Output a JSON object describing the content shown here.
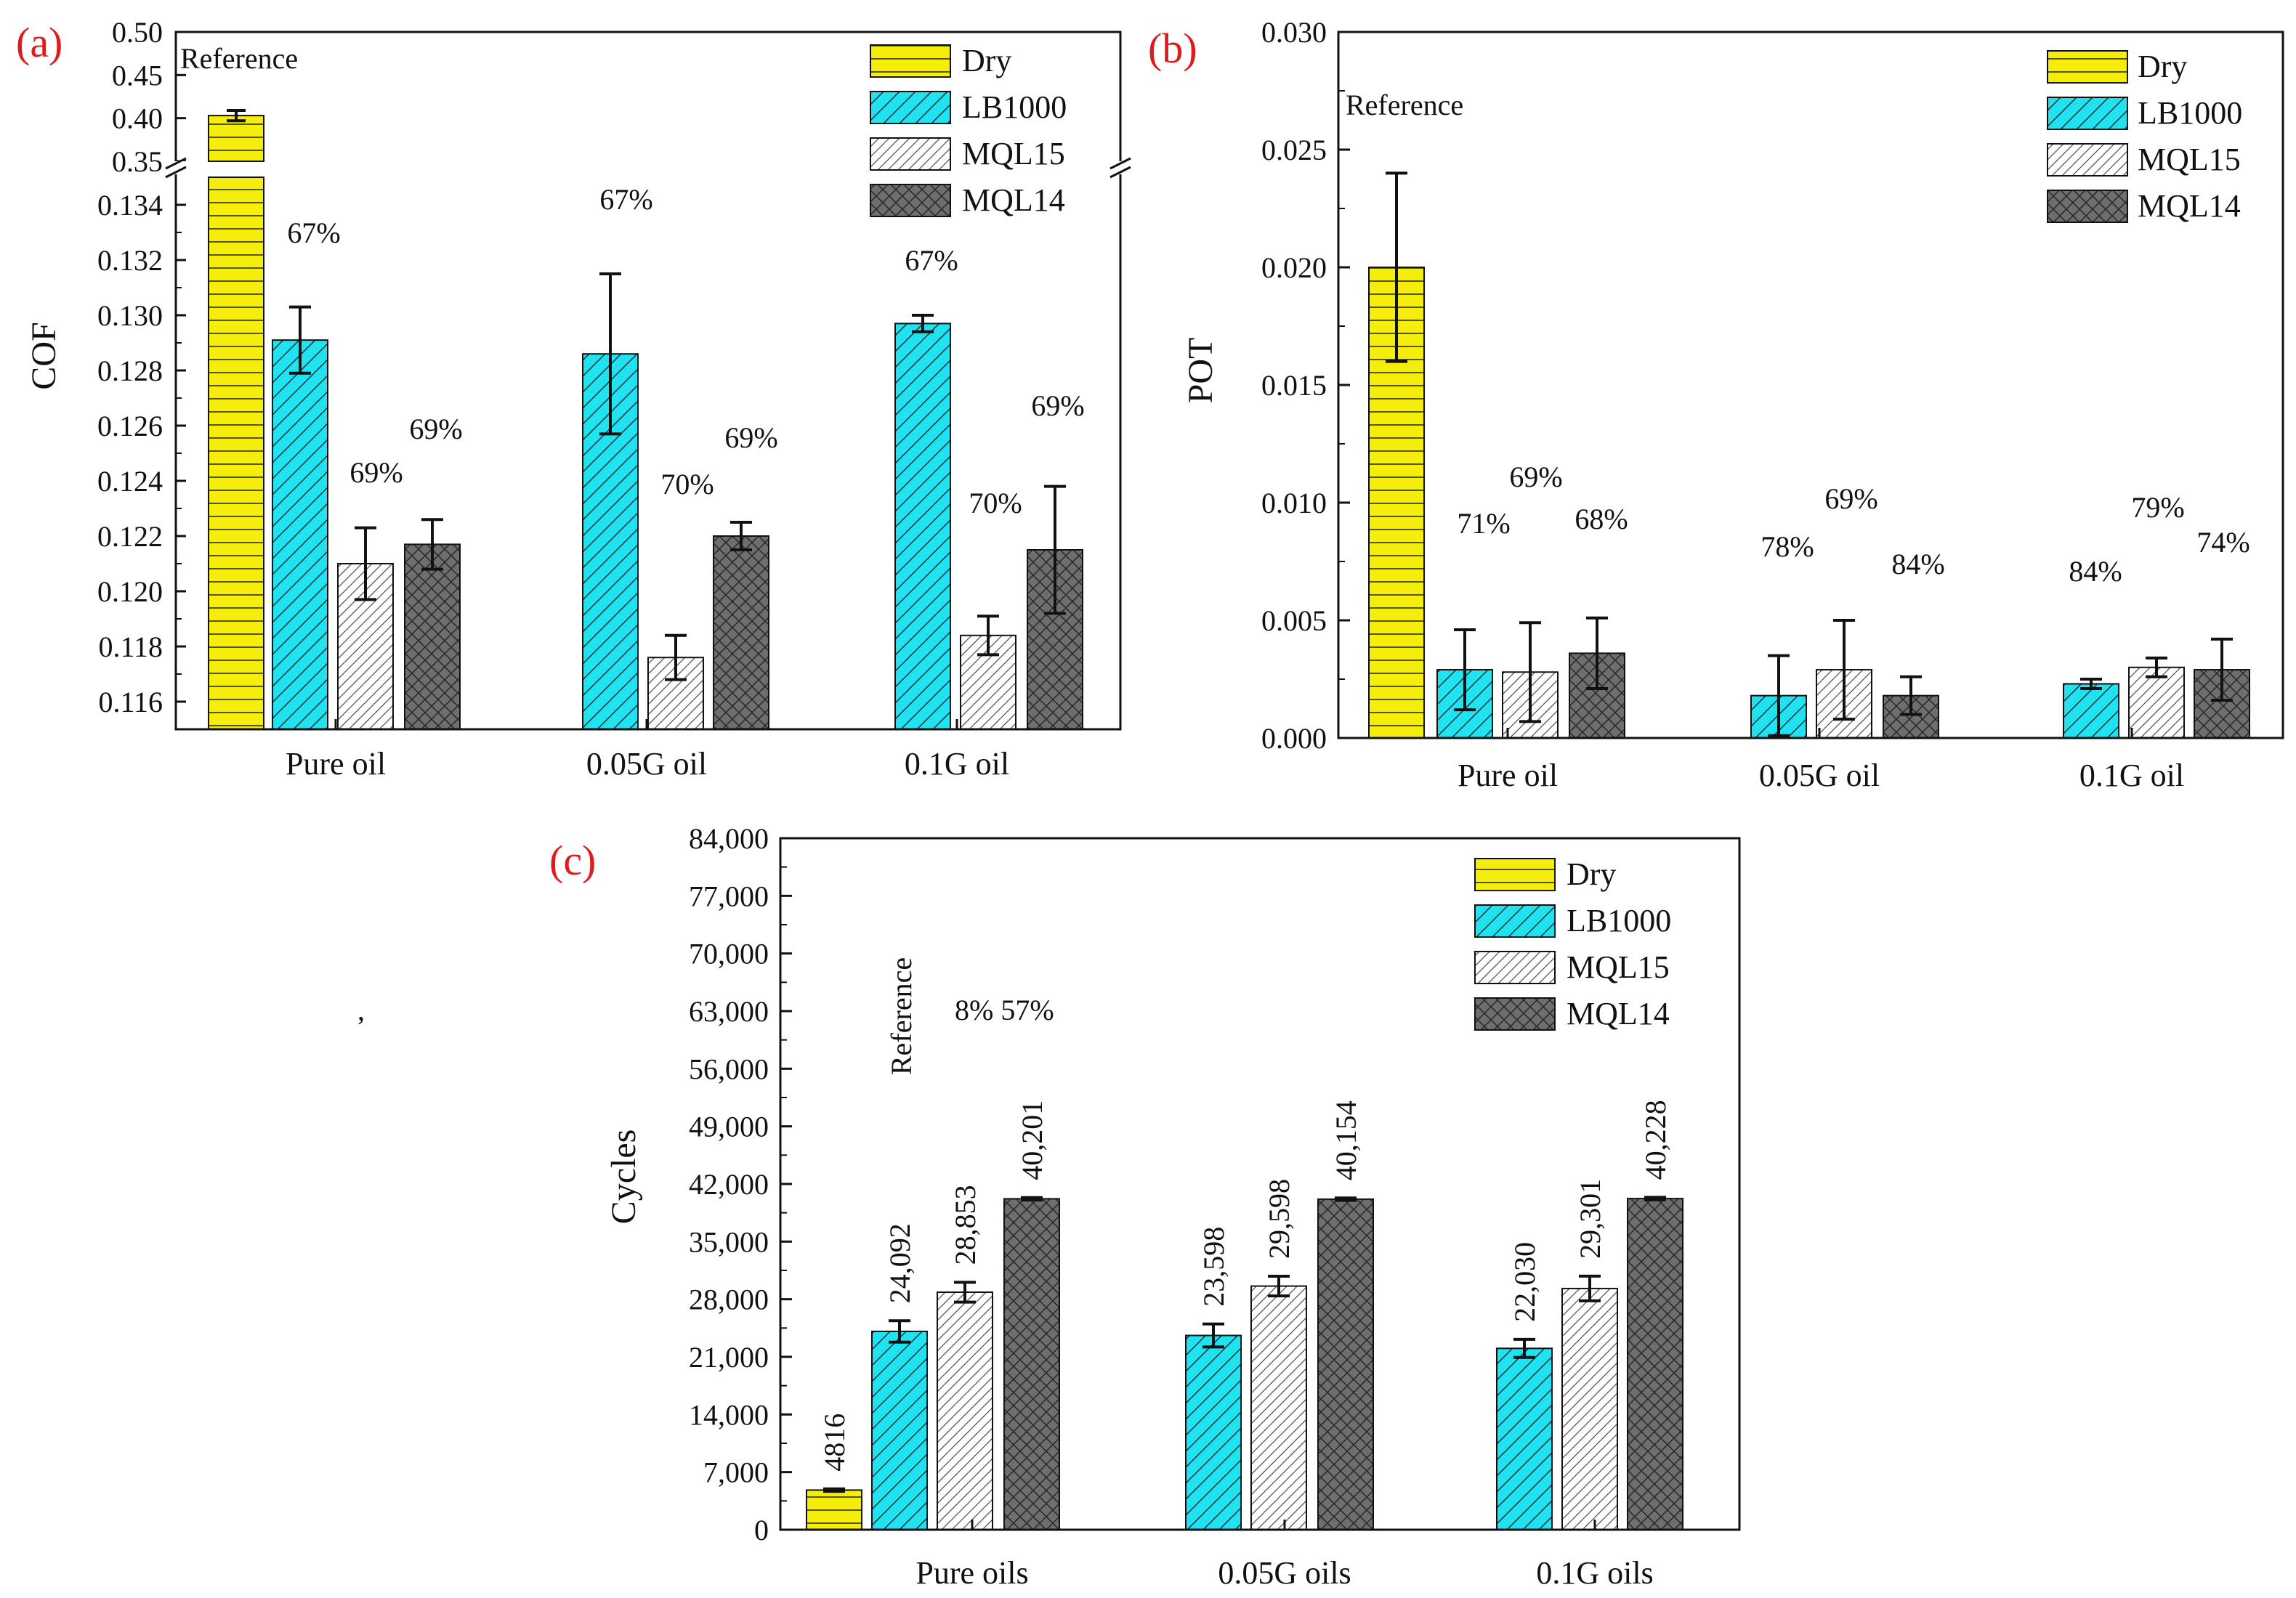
{
  "colors": {
    "dry": "#f5ee0a",
    "lb1000": "#1fe3f0",
    "mql15": "#ffffff",
    "mql14": "#6e6e6e",
    "panel_letter": "#e01b1b"
  },
  "patterns": {
    "Dry": "horizontal-lines",
    "LB1000": "diagonal-lines",
    "MQL15": "fine-diagonal-lines",
    "MQL14": "crosshatch"
  },
  "decor": {
    "stray_mark": ","
  },
  "chart_data": [
    {
      "id": "a",
      "panel_label": "(a)",
      "type": "bar",
      "ylabel": "COF",
      "xlabel": "",
      "categories": [
        "Pure oil",
        "0.05G oil",
        "0.1G oil"
      ],
      "axis_break": {
        "lower_range": [
          0.115,
          0.135
        ],
        "upper_range": [
          0.35,
          0.5
        ]
      },
      "upper_ticks": [
        "0.50",
        "0.45",
        "0.40",
        "0.35"
      ],
      "lower_ticks": [
        "0.134",
        "0.132",
        "0.130",
        "0.128",
        "0.126",
        "0.124",
        "0.122",
        "0.120",
        "0.118",
        "0.116"
      ],
      "series": [
        {
          "name": "Dry",
          "values": [
            0.403,
            null,
            null
          ],
          "errors": [
            0.006,
            null,
            null
          ]
        },
        {
          "name": "LB1000",
          "values": [
            0.1291,
            0.1286,
            0.1297
          ],
          "errors": [
            0.0012,
            0.0029,
            0.0003
          ]
        },
        {
          "name": "MQL15",
          "values": [
            0.121,
            0.1176,
            0.1184
          ],
          "errors": [
            0.0013,
            0.0008,
            0.0007
          ]
        },
        {
          "name": "MQL14",
          "values": [
            0.1217,
            0.122,
            0.1215
          ],
          "errors": [
            0.0009,
            0.0005,
            0.0023
          ]
        }
      ],
      "annotations": {
        "reference": "Reference",
        "LB1000": [
          "67%",
          "67%",
          "67%"
        ],
        "MQL15": [
          "69%",
          "70%",
          "70%"
        ],
        "MQL14": [
          "69%",
          "69%",
          "69%"
        ]
      },
      "legend": [
        "Dry",
        "LB1000",
        "MQL15",
        "MQL14"
      ],
      "legend_position": "top-right"
    },
    {
      "id": "b",
      "panel_label": "(b)",
      "type": "bar",
      "ylabel": "POT",
      "xlabel": "",
      "categories": [
        "Pure oil",
        "0.05G oil",
        "0.1G oil"
      ],
      "ylim": [
        0,
        0.03
      ],
      "ticks": [
        "0.000",
        "0.005",
        "0.010",
        "0.015",
        "0.020",
        "0.025",
        "0.030"
      ],
      "series": [
        {
          "name": "Dry",
          "values": [
            0.02,
            null,
            null
          ],
          "errors": [
            0.004,
            null,
            null
          ]
        },
        {
          "name": "LB1000",
          "values": [
            0.0029,
            0.0018,
            0.0023
          ],
          "errors": [
            0.0017,
            0.0017,
            0.0002
          ]
        },
        {
          "name": "MQL15",
          "values": [
            0.0028,
            0.0029,
            0.003
          ],
          "errors": [
            0.0021,
            0.0021,
            0.0004
          ]
        },
        {
          "name": "MQL14",
          "values": [
            0.0036,
            0.0018,
            0.0029
          ],
          "errors": [
            0.0015,
            0.0008,
            0.0013
          ]
        }
      ],
      "annotations": {
        "reference": "Reference",
        "LB1000": [
          "71%",
          "78%",
          "84%"
        ],
        "MQL15": [
          "69%",
          "69%",
          "79%"
        ],
        "MQL14": [
          "68%",
          "84%",
          "74%"
        ]
      },
      "legend": [
        "Dry",
        "LB1000",
        "MQL15",
        "MQL14"
      ],
      "legend_position": "top-right"
    },
    {
      "id": "c",
      "panel_label": "(c)",
      "type": "bar",
      "ylabel": "Cycles",
      "xlabel": "",
      "categories": [
        "Pure oils",
        "0.05G oils",
        "0.1G oils"
      ],
      "ylim": [
        0,
        84000
      ],
      "ticks": [
        "0",
        "7,000",
        "14,000",
        "21,000",
        "28,000",
        "35,000",
        "42,000",
        "49,000",
        "56,000",
        "63,000",
        "70,000",
        "77,000",
        "84,000"
      ],
      "series": [
        {
          "name": "Dry",
          "values": [
            4816,
            null,
            null
          ],
          "errors": [
            150,
            null,
            null
          ]
        },
        {
          "name": "LB1000",
          "values": [
            24092,
            23598,
            22030
          ],
          "errors": [
            1300,
            1400,
            1100
          ]
        },
        {
          "name": "MQL15",
          "values": [
            28853,
            29598,
            29301
          ],
          "errors": [
            1200,
            1200,
            1500
          ]
        },
        {
          "name": "MQL14",
          "values": [
            40201,
            40154,
            40228
          ],
          "errors": [
            150,
            150,
            150
          ]
        }
      ],
      "value_labels": {
        "Dry": [
          "4816",
          null,
          null
        ],
        "LB1000": [
          "24,092",
          "23,598",
          "22,030"
        ],
        "MQL15": [
          "28,853",
          "29,598",
          "29,301"
        ],
        "MQL14": [
          "40,201",
          "40,154",
          "40,228"
        ]
      },
      "annotations": {
        "reference": "Reference",
        "pct": "8% 57%"
      },
      "legend": [
        "Dry",
        "LB1000",
        "MQL15",
        "MQL14"
      ],
      "legend_position": "top-right"
    }
  ]
}
